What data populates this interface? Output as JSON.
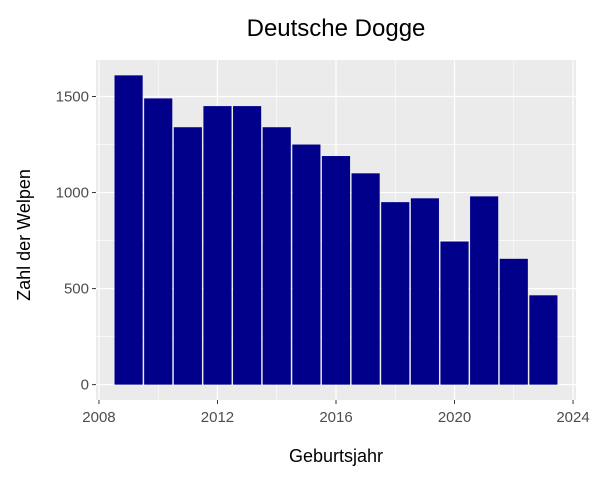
{
  "chart_data": {
    "type": "bar",
    "title": "Deutsche Dogge",
    "xlabel": "Geburtsjahr",
    "ylabel": "Zahl der Welpen",
    "x": [
      2009,
      2010,
      2011,
      2012,
      2013,
      2014,
      2015,
      2016,
      2017,
      2018,
      2019,
      2020,
      2021,
      2022,
      2023
    ],
    "values": [
      1610,
      1490,
      1340,
      1450,
      1450,
      1340,
      1250,
      1190,
      1100,
      950,
      970,
      745,
      980,
      655,
      465
    ],
    "xlim": [
      2007.9,
      2024.1
    ],
    "ylim": [
      -80,
      1690
    ],
    "xticks": [
      2008,
      2012,
      2016,
      2020,
      2024
    ],
    "yticks": [
      0,
      500,
      1000,
      1500
    ],
    "bar_color": "#00008B",
    "panel_background": "#EBEBEB",
    "grid": true,
    "legend": "none"
  }
}
